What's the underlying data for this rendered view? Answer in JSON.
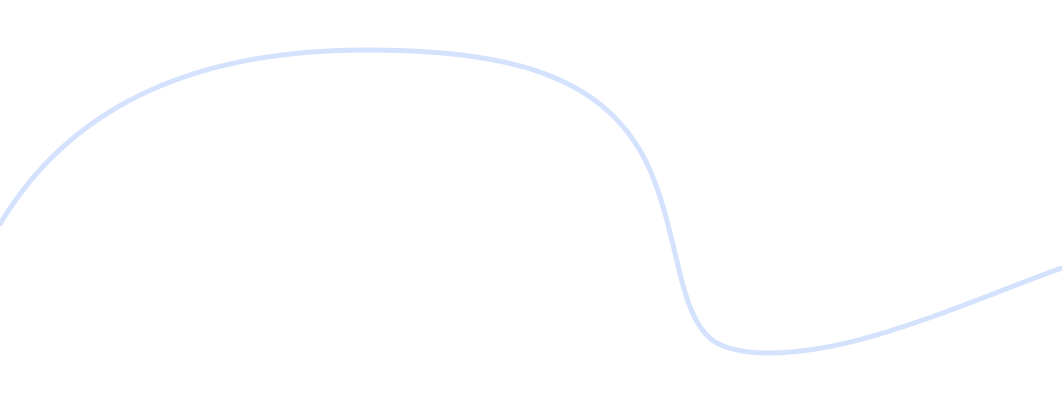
{
  "background_color": "#ffffff",
  "curve": {
    "icon": "decorative-wave-line",
    "stroke_color": "#d4e2fd"
  }
}
